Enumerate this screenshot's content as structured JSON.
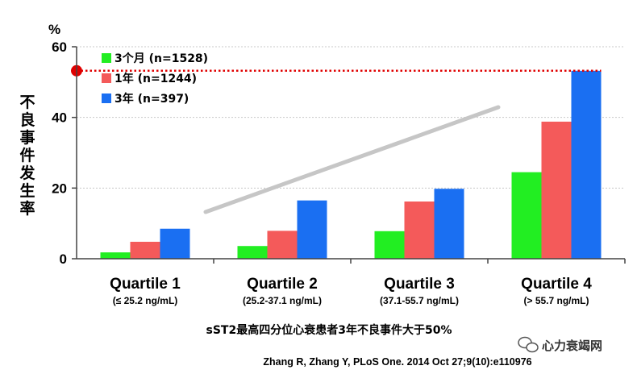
{
  "chart_data": {
    "type": "bar",
    "unit_label": "%",
    "ylabel": "不良事件发生率",
    "ylim": [
      0,
      60
    ],
    "yticks": [
      0,
      20,
      40,
      60
    ],
    "categories": [
      "Quartile 1",
      "Quartile 2",
      "Quartile 3",
      "Quartile 4"
    ],
    "category_sublabels": [
      "(≤ 25.2 ng/mL)",
      "(25.2-37.1 ng/mL)",
      "(37.1-55.7 ng/mL)",
      "(> 55.7 ng/mL)"
    ],
    "series": [
      {
        "name": "3个月 (n=1528)",
        "color": "#22ee22",
        "values": [
          1.8,
          3.6,
          7.8,
          24.5
        ]
      },
      {
        "name": "1年 (n=1244)",
        "color": "#f45a5a",
        "values": [
          4.8,
          7.9,
          16.2,
          38.8
        ]
      },
      {
        "name": "3年 (n=397)",
        "color": "#1a6ff2",
        "values": [
          8.5,
          16.5,
          19.8,
          53.2
        ]
      }
    ],
    "reference_line": {
      "value": 53.2,
      "color": "#e00000",
      "style": "dotted"
    },
    "legend_position": "top-left",
    "grid": true,
    "caption": "sST2最高四分位心衰患者3年不良事件大于50%",
    "citation": "Zhang R, Zhang Y, PLoS One. 2014 Oct 27;9(10):e110976",
    "watermark": "心力衰竭网"
  }
}
